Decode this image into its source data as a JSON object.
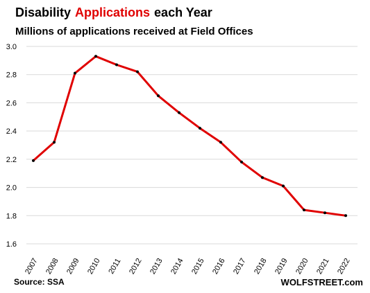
{
  "chart_data": {
    "type": "line",
    "title_parts": [
      "Disability",
      "Applications",
      "each Year"
    ],
    "subtitle": "Millions of applications received at Field Offices",
    "xlabel": "",
    "ylabel": "",
    "x": [
      "2007",
      "2008",
      "2009",
      "2010",
      "2011",
      "2012",
      "2013",
      "2014",
      "2015",
      "2016",
      "2017",
      "2018",
      "2019",
      "2020",
      "2021",
      "2022"
    ],
    "series": [
      {
        "values": [
          2.19,
          2.32,
          2.81,
          2.93,
          2.87,
          2.82,
          2.65,
          2.53,
          2.42,
          2.32,
          2.18,
          2.07,
          2.01,
          1.84,
          1.82,
          1.8
        ],
        "color": "#e00000"
      }
    ],
    "yticks": [
      "3.0",
      "2.8",
      "2.6",
      "2.4",
      "2.2",
      "2.0",
      "1.8",
      "1.6"
    ],
    "ylim": [
      1.6,
      3.0
    ],
    "grid": true,
    "legend": "none",
    "marker_color": "#000000",
    "grid_color": "#d9d9d9",
    "title_accent_color": "#e00000"
  },
  "footer": {
    "source": "Source: SSA",
    "watermark": "WOLFSTREET.com"
  }
}
